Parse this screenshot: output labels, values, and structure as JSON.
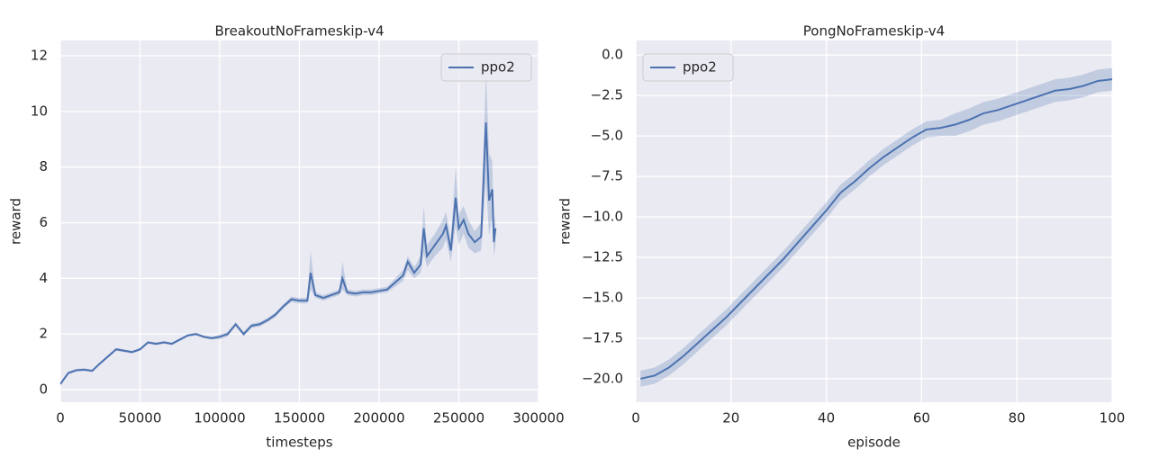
{
  "chart_data": [
    {
      "type": "line",
      "title": "BreakoutNoFrameskip-v4",
      "x_label": "timesteps",
      "y_label": "reward",
      "x": [
        0,
        5000,
        10000,
        15000,
        20000,
        25000,
        30000,
        35000,
        40000,
        45000,
        50000,
        55000,
        60000,
        65000,
        70000,
        75000,
        80000,
        85000,
        90000,
        95000,
        100000,
        105000,
        110000,
        115000,
        120000,
        125000,
        130000,
        135000,
        140000,
        145000,
        150000,
        155000,
        157000,
        160000,
        165000,
        170000,
        175000,
        177000,
        180000,
        185000,
        190000,
        195000,
        200000,
        205000,
        210000,
        215000,
        218000,
        222000,
        226000,
        228000,
        230000,
        235000,
        240000,
        242000,
        245000,
        248000,
        250000,
        253000,
        256000,
        260000,
        264000,
        267000,
        269000,
        271000,
        272000,
        273000
      ],
      "series": [
        {
          "name": "ppo2",
          "color": "#4c72b0",
          "values": [
            0.2,
            0.6,
            0.7,
            0.72,
            0.68,
            0.95,
            1.2,
            1.45,
            1.4,
            1.35,
            1.45,
            1.7,
            1.65,
            1.7,
            1.65,
            1.8,
            1.95,
            2.0,
            1.9,
            1.85,
            1.9,
            2.0,
            2.35,
            2.0,
            2.3,
            2.35,
            2.5,
            2.7,
            3.0,
            3.25,
            3.2,
            3.2,
            4.2,
            3.4,
            3.3,
            3.4,
            3.5,
            4.0,
            3.5,
            3.45,
            3.5,
            3.5,
            3.55,
            3.6,
            3.85,
            4.1,
            4.6,
            4.2,
            4.5,
            5.8,
            4.8,
            5.2,
            5.6,
            5.9,
            5.0,
            6.9,
            5.8,
            6.1,
            5.6,
            5.3,
            5.5,
            9.6,
            6.8,
            7.2,
            5.3,
            5.8
          ],
          "lower": [
            0.15,
            0.55,
            0.65,
            0.67,
            0.63,
            0.9,
            1.15,
            1.4,
            1.35,
            1.3,
            1.4,
            1.65,
            1.6,
            1.65,
            1.6,
            1.75,
            1.9,
            1.95,
            1.85,
            1.8,
            1.82,
            1.92,
            2.27,
            1.92,
            2.22,
            2.27,
            2.42,
            2.62,
            2.92,
            3.15,
            3.1,
            3.1,
            3.6,
            3.3,
            3.2,
            3.3,
            3.4,
            3.6,
            3.4,
            3.35,
            3.4,
            3.4,
            3.45,
            3.5,
            3.7,
            3.9,
            4.3,
            4.0,
            4.2,
            4.9,
            4.4,
            4.8,
            5.1,
            5.4,
            4.6,
            5.9,
            5.2,
            5.6,
            5.1,
            4.9,
            5.0,
            7.5,
            5.5,
            6.2,
            4.8,
            5.2
          ],
          "upper": [
            0.25,
            0.65,
            0.75,
            0.77,
            0.73,
            1.0,
            1.25,
            1.5,
            1.45,
            1.4,
            1.5,
            1.75,
            1.7,
            1.75,
            1.7,
            1.85,
            2.0,
            2.05,
            1.95,
            1.9,
            1.98,
            2.08,
            2.43,
            2.08,
            2.38,
            2.43,
            2.58,
            2.78,
            3.08,
            3.35,
            3.3,
            3.3,
            5.0,
            3.5,
            3.4,
            3.5,
            3.6,
            4.6,
            3.6,
            3.55,
            3.6,
            3.6,
            3.65,
            3.7,
            4.0,
            4.3,
            4.8,
            4.4,
            4.8,
            6.6,
            5.2,
            5.6,
            6.1,
            6.4,
            5.4,
            8.0,
            6.3,
            6.6,
            6.1,
            5.7,
            6.0,
            11.4,
            8.5,
            8.2,
            5.8,
            6.3
          ]
        }
      ],
      "xlim": [
        0,
        300000
      ],
      "xticks": [
        0,
        50000,
        100000,
        150000,
        200000,
        250000,
        300000
      ],
      "ylim": [
        -0.45,
        12.55
      ],
      "yticks": [
        0,
        2,
        4,
        6,
        8,
        10,
        12
      ],
      "grid": true,
      "legend": "upper right"
    },
    {
      "type": "line",
      "title": "PongNoFrameskip-v4",
      "x_label": "episode",
      "y_label": "reward",
      "x": [
        1,
        4,
        7,
        10,
        13,
        16,
        19,
        22,
        25,
        28,
        31,
        34,
        37,
        40,
        43,
        46,
        49,
        52,
        55,
        58,
        61,
        64,
        67,
        70,
        73,
        76,
        79,
        82,
        85,
        88,
        91,
        94,
        97,
        100
      ],
      "series": [
        {
          "name": "ppo2",
          "color": "#4c72b0",
          "values": [
            -20,
            -19.8,
            -19.3,
            -18.6,
            -17.8,
            -17,
            -16.2,
            -15.3,
            -14.4,
            -13.5,
            -12.6,
            -11.6,
            -10.6,
            -9.6,
            -8.5,
            -7.8,
            -7,
            -6.3,
            -5.7,
            -5.1,
            -4.6,
            -4.5,
            -4.3,
            -4,
            -3.6,
            -3.4,
            -3.1,
            -2.8,
            -2.5,
            -2.2,
            -2.1,
            -1.9,
            -1.6,
            -1.5
          ],
          "lower": [
            -20.5,
            -20.3,
            -19.8,
            -19.1,
            -18.3,
            -17.5,
            -16.7,
            -15.8,
            -14.9,
            -14,
            -13.1,
            -12.1,
            -11.1,
            -10.1,
            -9,
            -8.3,
            -7.5,
            -6.8,
            -6.2,
            -5.6,
            -5.1,
            -5,
            -5,
            -4.7,
            -4.3,
            -4.1,
            -3.8,
            -3.5,
            -3.2,
            -2.9,
            -2.8,
            -2.6,
            -2.3,
            -2.2
          ],
          "upper": [
            -19.5,
            -19.3,
            -18.8,
            -18.1,
            -17.3,
            -16.5,
            -15.7,
            -14.8,
            -13.9,
            -13,
            -12.1,
            -11.1,
            -10.1,
            -9.1,
            -8,
            -7.3,
            -6.5,
            -5.8,
            -5.2,
            -4.6,
            -4.1,
            -4,
            -3.6,
            -3.3,
            -2.9,
            -2.7,
            -2.4,
            -2.1,
            -1.8,
            -1.5,
            -1.4,
            -1.2,
            -0.9,
            -0.8
          ]
        }
      ],
      "xlim": [
        0,
        100
      ],
      "xticks": [
        0,
        20,
        40,
        60,
        80,
        100
      ],
      "ylim": [
        -21.45,
        0.9
      ],
      "yticks": [
        {
          "value": 0,
          "label": "0.0"
        },
        {
          "value": -2.5,
          "label": "−2.5"
        },
        {
          "value": -5,
          "label": "−5.0"
        },
        {
          "value": -7.5,
          "label": "−7.5"
        },
        {
          "value": -10,
          "label": "−10.0"
        },
        {
          "value": -12.5,
          "label": "−12.5"
        },
        {
          "value": -15,
          "label": "−15.0"
        },
        {
          "value": -17.5,
          "label": "−17.5"
        },
        {
          "value": -20,
          "label": "−20.0"
        }
      ],
      "grid": true,
      "legend": "upper left"
    }
  ]
}
